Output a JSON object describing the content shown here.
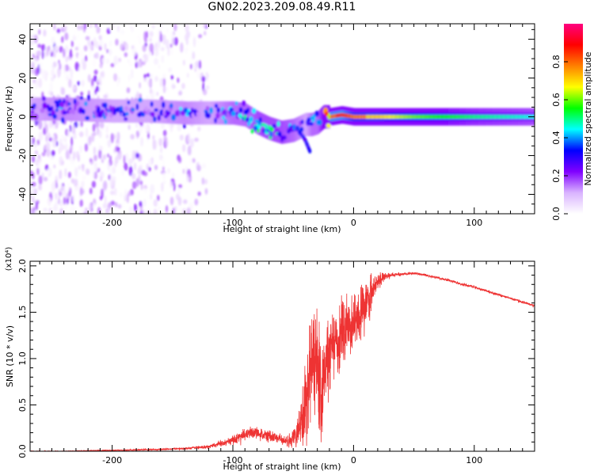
{
  "title": "GN02.2023.209.08.49.R11",
  "chart_data": [
    {
      "type": "heatmap",
      "xlabel": "Height of straight line (km)",
      "ylabel": "Frequency (Hz)",
      "xlim": [
        -268,
        150
      ],
      "ylim": [
        -50,
        48
      ],
      "xticks": [
        -200,
        -100,
        0,
        100
      ],
      "yticks": [
        -40,
        -20,
        0,
        20,
        40
      ],
      "xtick_labels": [
        "-200",
        "-100",
        "0",
        "100"
      ],
      "ytick_labels": [
        "-40",
        "-20",
        "0",
        "20",
        "40"
      ],
      "colorbar": {
        "label": "Normalized spectral amplitude",
        "range": [
          0,
          1
        ],
        "ticks": [
          0.0,
          0.2,
          0.4,
          0.6,
          0.8
        ],
        "tick_labels": [
          "0.0",
          "0.2",
          "0.4",
          "0.6",
          "0.8"
        ],
        "colors": [
          "#ffffff",
          "#d9b3ff",
          "#8000ff",
          "#0000ff",
          "#00ffff",
          "#00ff00",
          "#ffff00",
          "#ff8000",
          "#ff0000",
          "#ff0080"
        ]
      },
      "ridge": {
        "x": [
          -268,
          -240,
          -200,
          -170,
          -140,
          -120,
          -100,
          -90,
          -80,
          -70,
          -60,
          -50,
          -40,
          -35,
          -30,
          -25,
          -20,
          -10,
          0,
          20,
          50,
          100,
          150
        ],
        "y": [
          4,
          4,
          3,
          3,
          2,
          2,
          2,
          1,
          -3,
          -6,
          -8,
          -7,
          -4,
          -4,
          -3,
          0,
          0,
          1,
          0,
          0,
          0,
          0,
          0
        ],
        "amplitude": [
          0.3,
          0.35,
          0.3,
          0.3,
          0.35,
          0.3,
          0.4,
          0.4,
          0.45,
          0.45,
          0.45,
          0.4,
          0.3,
          0.4,
          0.4,
          0.6,
          0.8,
          0.8,
          0.7,
          0.7,
          0.6,
          0.5,
          0.45
        ]
      },
      "tail": {
        "x": [
          -45,
          -42,
          -40,
          -38,
          -36
        ],
        "y": [
          -8,
          -10,
          -12,
          -15,
          -18
        ]
      },
      "noise_region": {
        "x": [
          -268,
          -120
        ],
        "y": [
          -50,
          48
        ]
      },
      "grid": false
    },
    {
      "type": "line",
      "xlabel": "Height of straight line (km)",
      "ylabel": "SNR (10 * v/v)",
      "yscale_label": "(x10⁴)",
      "xlim": [
        -268,
        150
      ],
      "ylim": [
        0,
        2.05
      ],
      "xticks": [
        -200,
        -100,
        0,
        100
      ],
      "yticks": [
        0.0,
        0.5,
        1.0,
        1.5,
        2.0
      ],
      "xtick_labels": [
        "-200",
        "-100",
        "0",
        "100"
      ],
      "ytick_labels": [
        "0.0",
        "0.5",
        "1.0",
        "1.5",
        "2.0"
      ],
      "series": [
        {
          "color": "#ee3333",
          "x": [
            -268,
            -240,
            -200,
            -160,
            -140,
            -120,
            -105,
            -95,
            -85,
            -75,
            -65,
            -55,
            -48,
            -44,
            -40,
            -37,
            -34,
            -30,
            -27,
            -24,
            -20,
            -15,
            -10,
            -5,
            0,
            5,
            10,
            15,
            20,
            25,
            30,
            40,
            50,
            60,
            70,
            80,
            90,
            100,
            110,
            120,
            130,
            140,
            150
          ],
          "y": [
            0.0,
            0.0,
            0.01,
            0.02,
            0.03,
            0.05,
            0.1,
            0.15,
            0.2,
            0.18,
            0.15,
            0.1,
            0.15,
            0.3,
            0.5,
            0.75,
            0.9,
            1.0,
            0.6,
            0.9,
            1.0,
            1.15,
            1.3,
            1.35,
            1.4,
            1.45,
            1.55,
            1.7,
            1.85,
            1.88,
            1.9,
            1.91,
            1.92,
            1.9,
            1.87,
            1.84,
            1.8,
            1.77,
            1.73,
            1.69,
            1.65,
            1.61,
            1.57
          ],
          "noise": [
            0.003,
            0.003,
            0.005,
            0.008,
            0.01,
            0.015,
            0.03,
            0.05,
            0.06,
            0.06,
            0.05,
            0.05,
            0.1,
            0.2,
            0.3,
            0.35,
            0.35,
            0.35,
            0.4,
            0.35,
            0.3,
            0.3,
            0.25,
            0.22,
            0.2,
            0.2,
            0.2,
            0.15,
            0.08,
            0.04,
            0.02,
            0.012,
            0.012,
            0.012,
            0.012,
            0.012,
            0.012,
            0.012,
            0.012,
            0.012,
            0.012,
            0.012,
            0.012
          ]
        }
      ],
      "grid": false
    }
  ]
}
